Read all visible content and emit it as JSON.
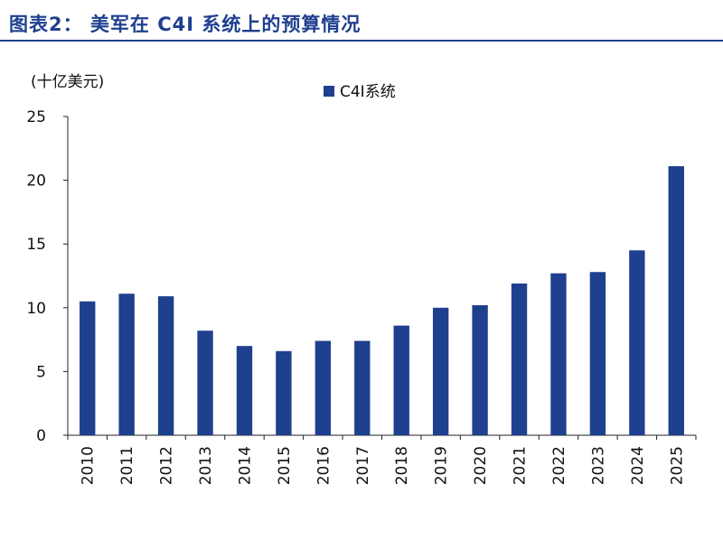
{
  "figure_title": "图表2： 美军在 C4I 系统上的预算情况",
  "colors": {
    "bar": "#1f3f8f",
    "title": "#1f3f8f",
    "axis": "#222222"
  },
  "chart_data": {
    "type": "bar",
    "title": "",
    "unit_label": "(十亿美元)",
    "xlabel": "",
    "ylabel": "",
    "categories": [
      "2010",
      "2011",
      "2012",
      "2013",
      "2014",
      "2015",
      "2016",
      "2017",
      "2018",
      "2019",
      "2020",
      "2021",
      "2022",
      "2023",
      "2024",
      "2025"
    ],
    "series": [
      {
        "name": "C4I系统",
        "values": [
          10.5,
          11.1,
          10.9,
          8.2,
          7.0,
          6.6,
          7.4,
          7.4,
          8.6,
          10.0,
          10.2,
          11.9,
          12.7,
          12.8,
          14.5,
          21.1
        ]
      }
    ],
    "ylim": [
      0,
      25
    ],
    "yticks": [
      0,
      5,
      10,
      15,
      20,
      25
    ],
    "grid": false,
    "legend_position": "top-center"
  }
}
